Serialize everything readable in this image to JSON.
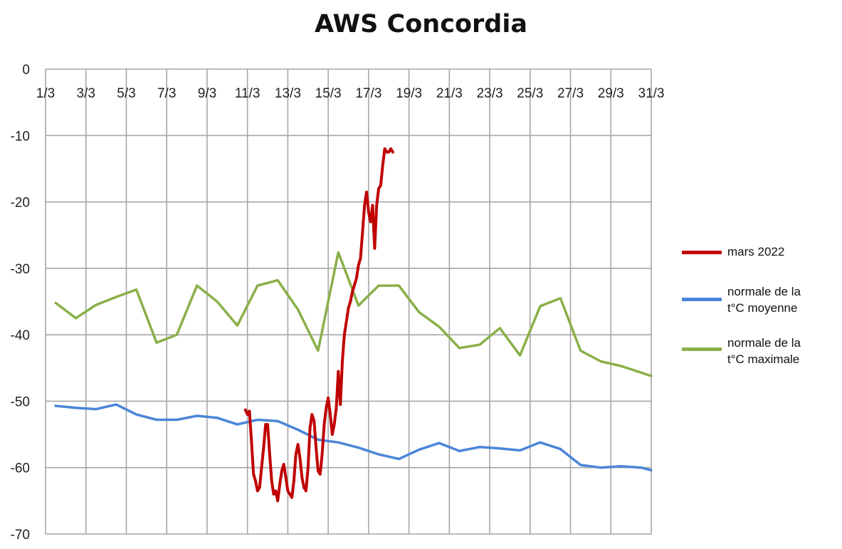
{
  "chart_data": {
    "type": "line",
    "title": "AWS Concordia",
    "xlabel": "",
    "ylabel": "",
    "ylim": [
      -70,
      0
    ],
    "yticks": [
      0,
      -10,
      -20,
      -30,
      -40,
      -50,
      -60,
      -70
    ],
    "xlim": [
      1,
      31
    ],
    "xtick_labels": [
      "1/3",
      "3/3",
      "5/3",
      "7/3",
      "9/3",
      "11/3",
      "13/3",
      "15/3",
      "17/3",
      "19/3",
      "21/3",
      "23/3",
      "25/3",
      "27/3",
      "29/3",
      "31/3"
    ],
    "grid": true,
    "legend_position": "right",
    "series": [
      {
        "name": "mars 2022",
        "color": "#c00000",
        "x": [
          10.9,
          11.0,
          11.1,
          11.2,
          11.3,
          11.4,
          11.5,
          11.6,
          11.7,
          11.8,
          11.9,
          12.0,
          12.1,
          12.2,
          12.3,
          12.4,
          12.5,
          12.6,
          12.7,
          12.8,
          12.9,
          13.0,
          13.1,
          13.2,
          13.3,
          13.4,
          13.5,
          13.6,
          13.7,
          13.8,
          13.9,
          14.0,
          14.1,
          14.2,
          14.3,
          14.4,
          14.5,
          14.6,
          14.7,
          14.8,
          14.9,
          15.0,
          15.1,
          15.2,
          15.3,
          15.4,
          15.5,
          15.6,
          15.7,
          15.8,
          15.9,
          16.0,
          16.1,
          16.2,
          16.3,
          16.4,
          16.5,
          16.6,
          16.7,
          16.8,
          16.9,
          17.0,
          17.1,
          17.2,
          17.3,
          17.4,
          17.5,
          17.6,
          17.7,
          17.8,
          17.9,
          18.0,
          18.1,
          18.2
        ],
        "values": [
          -51.3,
          -52.0,
          -51.5,
          -56.0,
          -61.0,
          -62.0,
          -63.5,
          -63.0,
          -60.0,
          -57.0,
          -53.5,
          -53.5,
          -58.0,
          -62.0,
          -64.0,
          -63.5,
          -65.0,
          -62.5,
          -60.5,
          -59.5,
          -61.5,
          -63.5,
          -64.0,
          -64.5,
          -62.0,
          -58.0,
          -56.5,
          -58.5,
          -61.5,
          -63.0,
          -63.5,
          -60.0,
          -54.0,
          -52.0,
          -53.0,
          -57.0,
          -60.5,
          -61.0,
          -58.0,
          -53.5,
          -51.0,
          -49.5,
          -52.0,
          -55.0,
          -53.5,
          -51.0,
          -45.5,
          -50.5,
          -44.0,
          -40.0,
          -38.0,
          -36.0,
          -35.0,
          -33.5,
          -32.5,
          -31.5,
          -29.5,
          -28.5,
          -24.5,
          -20.5,
          -18.5,
          -21.5,
          -23.0,
          -20.5,
          -27.0,
          -20.5,
          -18.0,
          -17.5,
          -14.5,
          -12.0,
          -12.5,
          -12.5,
          -12.0,
          -12.5
        ]
      },
      {
        "name": "normale de la\nt°C moyenne",
        "color": "#4a86d8",
        "x": [
          1.5,
          2.5,
          3.5,
          4.5,
          5.5,
          6.5,
          7.5,
          8.5,
          9.5,
          10.5,
          11.5,
          12.5,
          13.5,
          14.5,
          15.5,
          16.5,
          17.5,
          18.5,
          19.5,
          20.5,
          21.5,
          22.5,
          23.5,
          24.5,
          25.5,
          26.5,
          27.5,
          28.5,
          29.5,
          30.5,
          31.0
        ],
        "values": [
          -50.7,
          -51.0,
          -51.2,
          -50.5,
          -52.0,
          -52.8,
          -52.8,
          -52.2,
          -52.5,
          -53.5,
          -52.8,
          -53.0,
          -54.3,
          -55.8,
          -56.2,
          -57.0,
          -58.0,
          -58.7,
          -57.3,
          -56.3,
          -57.5,
          -56.9,
          -57.1,
          -57.4,
          -56.2,
          -57.2,
          -59.6,
          -60.0,
          -59.8,
          -60.0,
          -60.4
        ]
      },
      {
        "name": "normale de la\nt°C maximale",
        "color": "#8ab04a",
        "x": [
          1.5,
          2.5,
          3.5,
          4.5,
          5.5,
          6.5,
          7.5,
          8.5,
          9.5,
          10.5,
          11.5,
          12.5,
          13.5,
          14.5,
          15.5,
          16.5,
          17.5,
          18.5,
          19.5,
          20.5,
          21.5,
          22.5,
          23.5,
          24.5,
          25.5,
          26.5,
          27.5,
          28.5,
          29.5,
          30.5,
          31.0
        ],
        "values": [
          -35.2,
          -37.5,
          -35.5,
          -34.3,
          -33.2,
          -41.2,
          -40.0,
          -32.6,
          -35.0,
          -38.6,
          -32.6,
          -31.8,
          -36.2,
          -42.4,
          -27.6,
          -35.6,
          -32.6,
          -32.6,
          -36.6,
          -38.8,
          -42.0,
          -41.5,
          -39.0,
          -43.1,
          -35.7,
          -34.5,
          -42.4,
          -44.0,
          -44.7,
          -45.7,
          -46.2
        ]
      }
    ]
  }
}
